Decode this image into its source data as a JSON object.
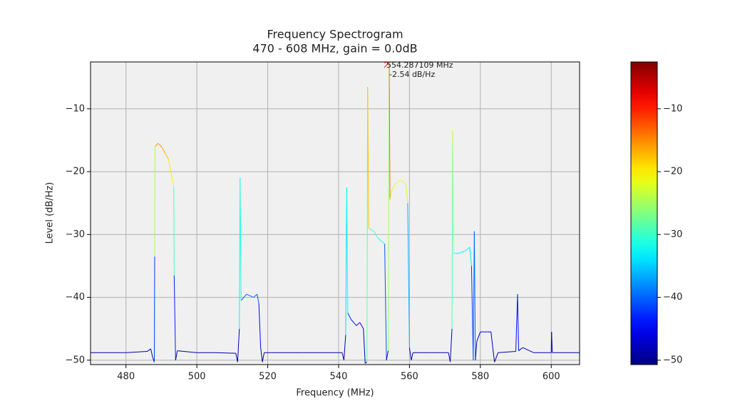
{
  "chart_data": {
    "type": "line",
    "title": "Frequency Spectrogram",
    "subtitle": "470 - 608 MHz, gain = 0.0dB",
    "x_label": "Frequency (MHz)",
    "y_label": "Level (dB/Hz)",
    "xlim": [
      470,
      608
    ],
    "ylim": [
      -50.7,
      -2.54
    ],
    "xticks": [
      480,
      500,
      520,
      540,
      560,
      580,
      600
    ],
    "yticks": [
      {
        "value": -10,
        "label": "−10"
      },
      {
        "value": -20,
        "label": "−20"
      },
      {
        "value": -30,
        "label": "−30"
      },
      {
        "value": -40,
        "label": "−40"
      },
      {
        "value": -50,
        "label": "−50"
      }
    ],
    "grid": true,
    "colormap": "jet",
    "clim": [
      -50.7,
      -2.54
    ],
    "colorbar_ticks": [
      {
        "value": -10,
        "label": "−10"
      },
      {
        "value": -20,
        "label": "−20"
      },
      {
        "value": -30,
        "label": "−30"
      },
      {
        "value": -40,
        "label": "−40"
      },
      {
        "value": -50,
        "label": "−50"
      }
    ],
    "annotation": {
      "x": 554.287109,
      "y": -2.54,
      "lines": [
        "554.287109 MHz",
        "-2.54 dB/Hz"
      ]
    },
    "series": [
      {
        "x": [
          470,
          480,
          486,
          487,
          487.5,
          488,
          488.1,
          488.2,
          489,
          490,
          491,
          492,
          493,
          493.5,
          493.6,
          494,
          494.5,
          500,
          505,
          511,
          511.5,
          512,
          512.2,
          512.5,
          514,
          516,
          517,
          517.5,
          518,
          518.5,
          519,
          525,
          530,
          535,
          541,
          541.5,
          542,
          542.3,
          542.6,
          543.5,
          545,
          546,
          547,
          547.5,
          548,
          548.2,
          548.5,
          550,
          551,
          552,
          553,
          553.5,
          554,
          554.287109,
          554.5,
          555,
          556,
          557,
          558,
          559,
          559.5,
          560,
          560.5,
          561,
          566,
          571,
          571.5,
          572,
          572.2,
          572.5,
          574,
          576,
          577,
          577.5,
          578,
          578.3,
          578.6,
          579,
          580,
          582,
          583,
          583.5,
          584,
          585,
          590,
          590.5,
          590.8,
          592,
          595,
          600,
          600.1,
          600.3,
          608
        ],
        "values": [
          -48.8,
          -48.8,
          -48.6,
          -48.2,
          -49.5,
          -50.3,
          -33.5,
          -16,
          -15.5,
          -16,
          -17,
          -18,
          -21,
          -22.5,
          -36.5,
          -50,
          -48.5,
          -48.8,
          -48.8,
          -48.9,
          -50.3,
          -45,
          -21,
          -40.5,
          -39.5,
          -40,
          -39.5,
          -41,
          -48,
          -50.3,
          -48.8,
          -48.8,
          -48.8,
          -48.8,
          -48.8,
          -50,
          -46,
          -22.5,
          -42.5,
          -43.5,
          -44.5,
          -44,
          -45,
          -50.5,
          -50.3,
          -6.5,
          -29,
          -29.5,
          -30.5,
          -31,
          -31.5,
          -50,
          -48.5,
          -2.54,
          -24.5,
          -23,
          -22,
          -21.5,
          -21.5,
          -22,
          -25,
          -48,
          -50,
          -48.8,
          -48.8,
          -48.8,
          -50.3,
          -45,
          -13.5,
          -33,
          -33,
          -32.5,
          -32,
          -35,
          -50,
          -29.5,
          -50,
          -47,
          -45.5,
          -45.5,
          -45.5,
          -48,
          -50.3,
          -48.8,
          -48.6,
          -39.5,
          -48.5,
          -48,
          -48.8,
          -48.8,
          -45.5,
          -48.8,
          -48.8
        ]
      }
    ]
  }
}
